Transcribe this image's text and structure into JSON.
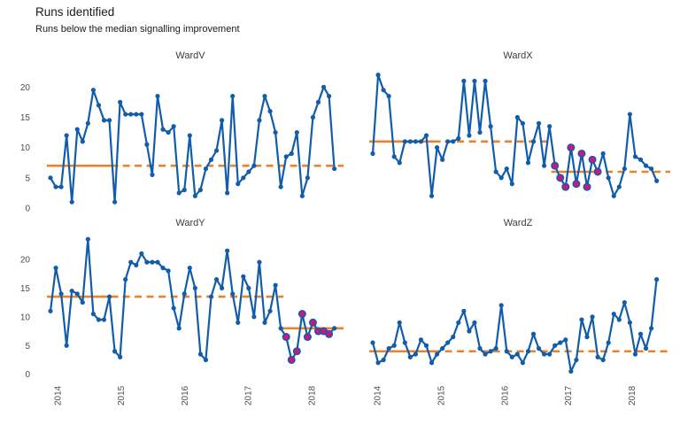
{
  "title": "Runs identified",
  "subtitle": "Runs below the median signalling improvement",
  "colors": {
    "line": "#115CAB",
    "point": "#115CAB",
    "median": "#E8832C",
    "signal_point": "#C9177E",
    "facet_text": "#3c3c3c",
    "axis_text": "#4d4d4d",
    "background": "#ffffff"
  },
  "chart_data": {
    "type": "line",
    "grid": false,
    "legend_position": "none",
    "x": {
      "unit": "month",
      "start": "2014-01",
      "n_points": 54,
      "tick_labels": [
        "2014",
        "2015",
        "2016",
        "2017",
        "2018"
      ]
    },
    "y": {
      "ticks": [
        0,
        5,
        10,
        15,
        20
      ],
      "tick_labels": [
        "0",
        "5",
        "10",
        "15",
        "20"
      ],
      "range": [
        0,
        24
      ]
    },
    "facets": [
      {
        "title": "WardV",
        "median": 7,
        "median_solid_points": 13,
        "signal": null,
        "values": [
          5,
          3.5,
          3.5,
          12,
          1,
          13,
          11,
          14,
          19.5,
          17,
          14.5,
          14.5,
          1,
          17.5,
          15.5,
          15.5,
          15.5,
          15.5,
          10.5,
          5.5,
          18.5,
          13,
          12.5,
          13.5,
          2.5,
          3,
          12,
          2,
          3,
          6.5,
          8,
          9.5,
          14.5,
          2.5,
          18.5,
          4,
          5,
          6,
          7,
          14.5,
          18.5,
          16,
          12.5,
          3.5,
          8.5,
          9,
          12.5,
          2,
          5,
          15,
          17.5,
          20,
          18.5,
          6.5
        ]
      },
      {
        "title": "WardX",
        "median": 11,
        "median_solid_points": 13,
        "signal": {
          "start_index": 34,
          "length": 9,
          "median": 6,
          "extension": "dashed"
        },
        "values": [
          9,
          22,
          19.5,
          18.5,
          8.5,
          7.5,
          11,
          11,
          11,
          11,
          12,
          2,
          10,
          8,
          11,
          11,
          11.5,
          21,
          12,
          21,
          12.5,
          21,
          13.5,
          6,
          5,
          6.5,
          4,
          15,
          14,
          7.5,
          11,
          14,
          7,
          13.5,
          7,
          5,
          3.5,
          10,
          4,
          9,
          3.5,
          8,
          6,
          9,
          5,
          2,
          3.5,
          6.5,
          15.5,
          8.5,
          8,
          7,
          6.5,
          4.5
        ]
      },
      {
        "title": "WardY",
        "median": 13.5,
        "median_solid_points": 13,
        "signal": {
          "start_index": 44,
          "length": 9,
          "median": 8,
          "extension": "solid"
        },
        "values": [
          11,
          18.5,
          14,
          5,
          14.5,
          14,
          12.5,
          23.5,
          10.5,
          9.5,
          9.5,
          13.5,
          4,
          3,
          16.5,
          19.5,
          19,
          21,
          19.5,
          19.5,
          19.5,
          18.5,
          18,
          11.5,
          8,
          14,
          18.5,
          15,
          3.5,
          2.5,
          13.5,
          16.5,
          15,
          21.5,
          14,
          9,
          17,
          15,
          10,
          19.5,
          9,
          11,
          15.5,
          8,
          6.5,
          2.5,
          4,
          10.5,
          6.5,
          9,
          7.5,
          7.5,
          7,
          8
        ]
      },
      {
        "title": "WardZ",
        "median": 4,
        "median_solid_points": 13,
        "signal": null,
        "values": [
          5.5,
          2,
          2.5,
          4.5,
          5,
          9,
          5.5,
          3,
          3.5,
          6,
          5,
          2,
          3.5,
          4.5,
          5.5,
          6.5,
          9,
          11,
          7.5,
          9,
          4.5,
          3.5,
          4,
          4.5,
          12,
          4,
          3,
          3.5,
          2,
          4,
          7,
          4.5,
          3.5,
          3.5,
          5,
          5.5,
          6,
          0.5,
          2.5,
          9.5,
          6.5,
          10,
          3,
          2.5,
          5.5,
          10.5,
          9.5,
          12.5,
          9,
          3.5,
          7,
          4.5,
          8,
          16.5
        ]
      }
    ]
  }
}
